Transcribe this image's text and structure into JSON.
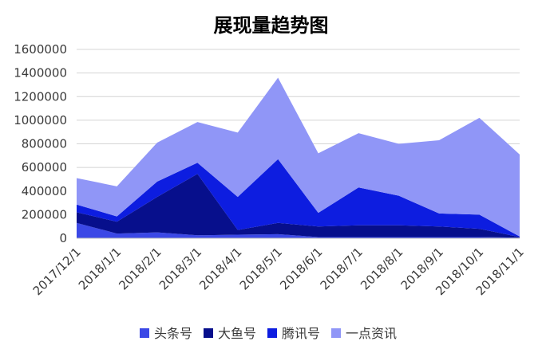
{
  "chart_data": {
    "type": "area",
    "stacked": true,
    "title": "展现量趋势图",
    "xlabel": "",
    "ylabel": "",
    "categories": [
      "2017/12/1",
      "2018/1/1",
      "2018/2/1",
      "2018/3/1",
      "2018/4/1",
      "2018/5/1",
      "2018/6/1",
      "2018/7/1",
      "2018/8/1",
      "2018/9/1",
      "2018/10/1",
      "2018/11/1"
    ],
    "ylim": [
      0,
      1600000
    ],
    "yticks": [
      "0",
      "200000",
      "400000",
      "600000",
      "800000",
      "1000000",
      "1200000",
      "1400000",
      "1600000"
    ],
    "grid": true,
    "legend_position": "bottom",
    "series": [
      {
        "name": "头条号",
        "color": "#3b48e6",
        "values": [
          130000,
          40000,
          50000,
          25000,
          30000,
          35000,
          10000,
          10000,
          10000,
          10000,
          10000,
          5000
        ]
      },
      {
        "name": "大鱼号",
        "color": "#070f8c",
        "values": [
          90000,
          100000,
          300000,
          520000,
          40000,
          95000,
          90000,
          100000,
          100000,
          90000,
          70000,
          5000
        ]
      },
      {
        "name": "腾讯号",
        "color": "#0d1de0",
        "values": [
          65000,
          45000,
          130000,
          95000,
          280000,
          540000,
          115000,
          320000,
          250000,
          110000,
          120000,
          5000
        ]
      },
      {
        "name": "一点资讯",
        "color": "#9096f7",
        "values": [
          225000,
          255000,
          330000,
          345000,
          545000,
          690000,
          505000,
          460000,
          440000,
          620000,
          820000,
          695000
        ]
      }
    ]
  }
}
